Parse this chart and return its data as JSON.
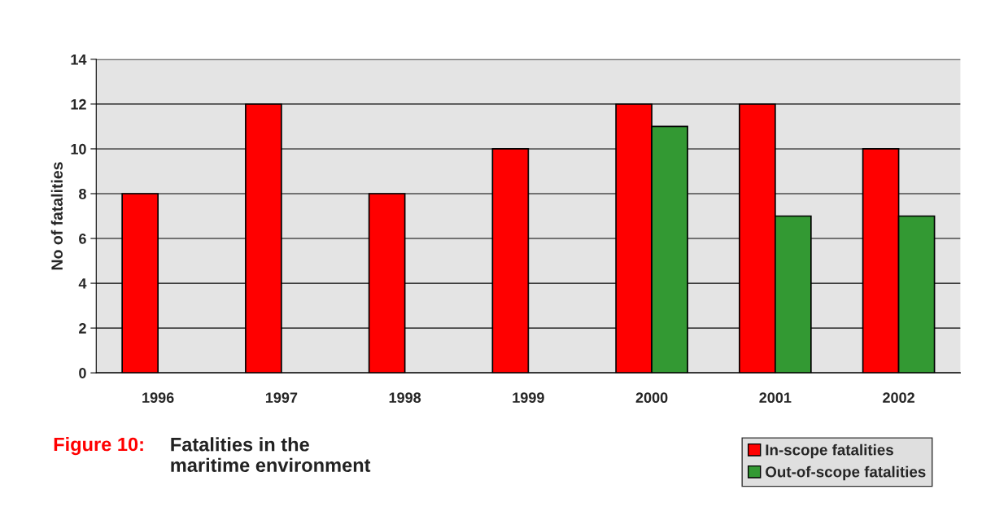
{
  "chart_data": {
    "type": "bar",
    "title": "Figure 10:",
    "subtitle": "Fatalities in the\nmaritime environment",
    "ylabel": "No of fatalities",
    "categories": [
      "1996",
      "1997",
      "1998",
      "1999",
      "2000",
      "2001",
      "2002"
    ],
    "series": [
      {
        "name": "In-scope fatalities",
        "color": "#ff0000",
        "values": [
          8,
          12,
          8,
          10,
          12,
          12,
          10
        ]
      },
      {
        "name": "Out-of-scope fatalities",
        "color": "#339933",
        "values": [
          null,
          null,
          null,
          null,
          11,
          7,
          7
        ]
      }
    ],
    "ylim": [
      0,
      14
    ],
    "yticks": [
      0,
      2,
      4,
      6,
      8,
      10,
      12,
      14
    ],
    "grid": "y",
    "legend": "bottom right"
  }
}
